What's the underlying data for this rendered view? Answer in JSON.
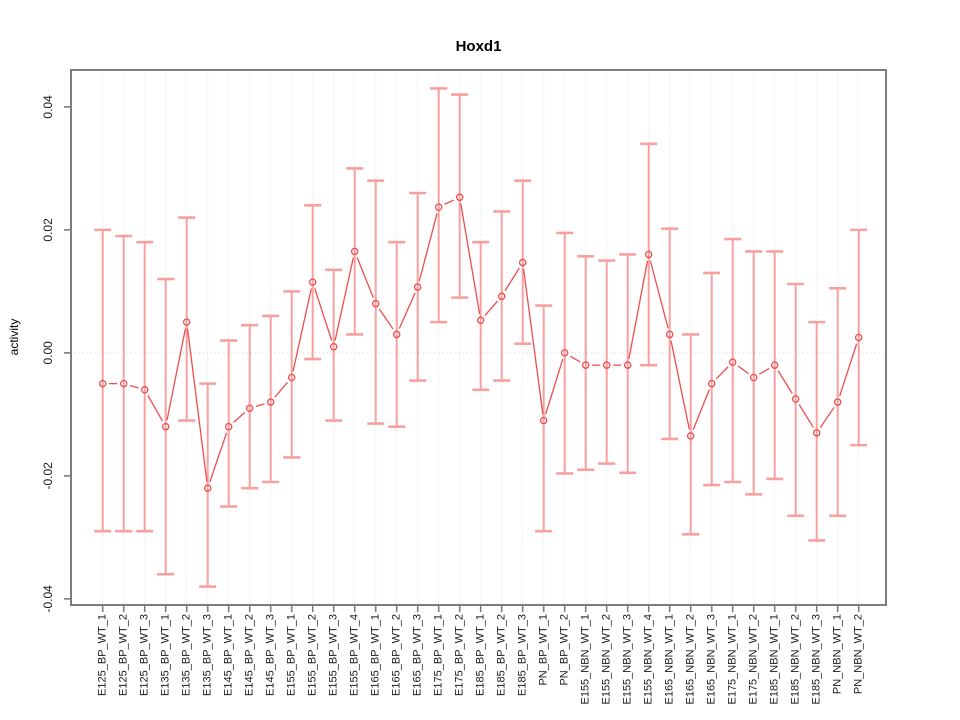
{
  "chart_data": {
    "type": "line",
    "title": "Hoxd1",
    "xlabel": "",
    "ylabel": "activity",
    "ylim": [
      -0.041,
      0.046
    ],
    "yticks": [
      -0.04,
      -0.02,
      0,
      0.02,
      0.04
    ],
    "ytick_labels": [
      "-0.04",
      "-0.02",
      "0.00",
      "0.02",
      "0.04"
    ],
    "grid": "vertical dotted gridline at each category; horizontal dotted line at y=0; no legend",
    "marker": "open-circle",
    "categories": [
      "E125_BP_WT_1",
      "E125_BP_WT_2",
      "E125_BP_WT_3",
      "E135_BP_WT_1",
      "E135_BP_WT_2",
      "E135_BP_WT_3",
      "E145_BP_WT_1",
      "E145_BP_WT_2",
      "E145_BP_WT_3",
      "E155_BP_WT_1",
      "E155_BP_WT_2",
      "E155_BP_WT_3",
      "E155_BP_WT_4",
      "E165_BP_WT_1",
      "E165_BP_WT_2",
      "E165_BP_WT_3",
      "E175_BP_WT_1",
      "E175_BP_WT_2",
      "E185_BP_WT_1",
      "E185_BP_WT_2",
      "E185_BP_WT_3",
      "PN_BP_WT_1",
      "PN_BP_WT_2",
      "E155_NBN_WT_1",
      "E155_NBN_WT_2",
      "E155_NBN_WT_3",
      "E155_NBN_WT_4",
      "E165_NBN_WT_1",
      "E165_NBN_WT_2",
      "E165_NBN_WT_3",
      "E175_NBN_WT_1",
      "E175_NBN_WT_2",
      "E185_NBN_WT_1",
      "E185_NBN_WT_2",
      "E185_NBN_WT_3",
      "PN_NBN_WT_1",
      "PN_NBN_WT_2"
    ],
    "series": [
      {
        "name": "activity",
        "values": [
          -0.005,
          -0.005,
          -0.006,
          -0.012,
          0.005,
          -0.022,
          -0.012,
          -0.009,
          -0.008,
          -0.004,
          0.0115,
          0.001,
          0.0165,
          0.008,
          0.003,
          0.0107,
          0.0237,
          0.0253,
          0.0053,
          0.0092,
          0.0147,
          -0.011,
          0.0,
          -0.002,
          -0.002,
          -0.002,
          0.016,
          0.003,
          -0.0135,
          -0.005,
          -0.0015,
          -0.004,
          -0.002,
          -0.0075,
          -0.013,
          -0.008,
          0.0025
        ],
        "lower": [
          -0.029,
          -0.029,
          -0.029,
          -0.036,
          -0.011,
          -0.038,
          -0.025,
          -0.022,
          -0.021,
          -0.017,
          -0.001,
          -0.011,
          0.003,
          -0.0115,
          -0.012,
          -0.0045,
          0.005,
          0.009,
          -0.006,
          -0.0045,
          0.0015,
          -0.029,
          -0.0196,
          -0.019,
          -0.018,
          -0.0195,
          -0.002,
          -0.014,
          -0.0295,
          -0.0215,
          -0.021,
          -0.023,
          -0.0205,
          -0.0265,
          -0.0305,
          -0.0265,
          -0.015
        ],
        "upper": [
          0.02,
          0.019,
          0.018,
          0.012,
          0.022,
          -0.005,
          0.002,
          0.0045,
          0.006,
          0.01,
          0.024,
          0.0135,
          0.03,
          0.028,
          0.018,
          0.026,
          0.043,
          0.042,
          0.018,
          0.023,
          0.028,
          0.0077,
          0.0195,
          0.0157,
          0.015,
          0.016,
          0.034,
          0.0202,
          0.003,
          0.013,
          0.0185,
          0.0165,
          0.0165,
          0.0112,
          0.005,
          0.0105,
          0.02
        ]
      }
    ],
    "colors": {
      "error_bar": "#f7a0a0",
      "line": "#ee4c4c",
      "grid": "#d9d9d9",
      "axis_box": "#7d7d7d",
      "tick_label": "#1a1a1a",
      "background": "#ffffff"
    }
  }
}
